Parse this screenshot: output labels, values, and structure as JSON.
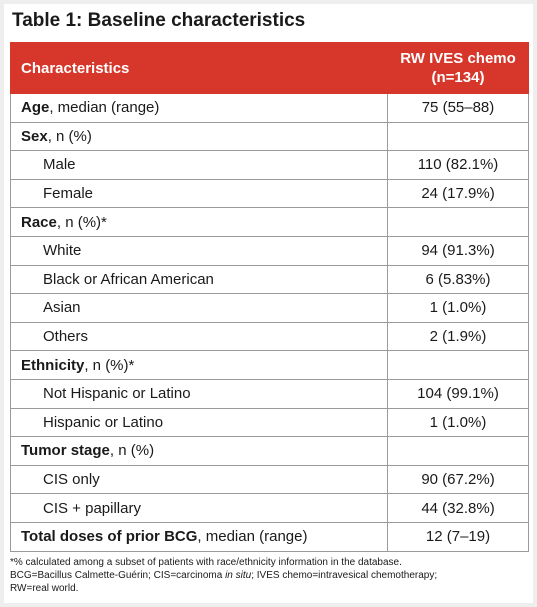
{
  "title": "Table 1: Baseline characteristics",
  "table": {
    "header": [
      "Characteristics",
      [
        "RW IVES chemo",
        "(n=134)"
      ]
    ],
    "rows": [
      {
        "bold": "Age",
        "label": ", median (range)",
        "value": "75 (55–88)"
      },
      {
        "bold": "Sex",
        "label": ", n (%)"
      },
      {
        "label": "Male",
        "value": "110 (82.1%)"
      },
      {
        "label": "Female",
        "value": "24 (17.9%)"
      },
      {
        "bold": "Race",
        "label": ", n (%)*"
      },
      {
        "label": "White",
        "value": "94 (91.3%)"
      },
      {
        "label": "Black or African American",
        "value": "6 (5.83%)"
      },
      {
        "label": "Asian",
        "value": "1 (1.0%)"
      },
      {
        "label": "Others",
        "value": "2 (1.9%)"
      },
      {
        "bold": "Ethnicity",
        "label": ", n (%)*"
      },
      {
        "label": "Not Hispanic or Latino",
        "value": "104 (99.1%)"
      },
      {
        "label": "Hispanic or Latino",
        "value": "1 (1.0%)"
      },
      {
        "bold": "Tumor stage",
        "label": ", n (%)"
      },
      {
        "label": "CIS only",
        "value": "90 (67.2%)"
      },
      {
        "label": "CIS + papillary",
        "value": "44 (32.8%)"
      },
      {
        "bold": "Total doses of prior BCG",
        "label": ", median (range)",
        "value": "12 (7–19)"
      }
    ]
  },
  "footnote": [
    [
      "*% calculated among a subset of patients with race/ethnicity information in the database."
    ],
    [
      "BCG=Bacillus Calmette-Guérin; CIS=carcinoma ",
      "in situ",
      "; IVES chemo=intravesical chemotherapy;"
    ],
    [
      "RW=real world."
    ]
  ]
}
